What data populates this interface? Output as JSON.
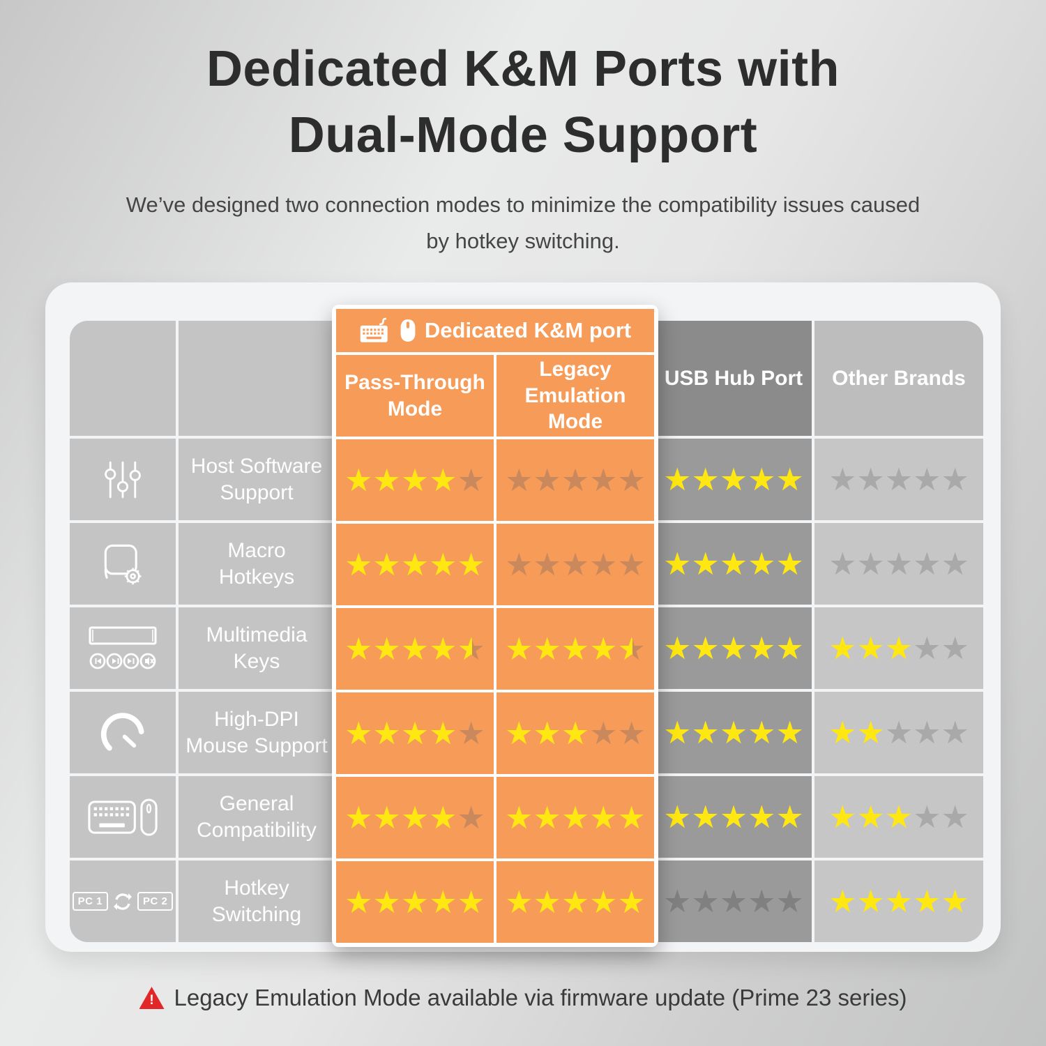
{
  "title": {
    "line1": "Dedicated K&M Ports with",
    "line2": "Dual-Mode Support"
  },
  "subtitle": "We’ve designed two connection modes to minimize the compatibility issues caused by hotkey switching.",
  "table": {
    "group_header": "Dedicated K&M port",
    "group_icons": [
      "keyboard-icon",
      "mouse-icon"
    ],
    "columns": {
      "pass": "Pass-Through\nMode",
      "legacy": "Legacy\nEmulation\nMode",
      "usb": "USB Hub Port",
      "other": "Other Brands"
    },
    "max_stars": 5,
    "rows": [
      {
        "icon": "sliders-icon",
        "label": "Host Software\nSupport"
      },
      {
        "icon": "macro-hotkeys-icon",
        "label": "Macro\nHotkeys"
      },
      {
        "icon": "multimedia-keys-icon",
        "label": "Multimedia\nKeys"
      },
      {
        "icon": "gauge-icon",
        "label": "High-DPI\nMouse Support"
      },
      {
        "icon": "keyboard-mouse-icon",
        "label": "General\nCompatibility"
      },
      {
        "icon": "pc-switch-icon",
        "label": "Hotkey\nSwitching"
      }
    ],
    "pc_labels": {
      "pc1": "PC 1",
      "pc2": "PC 2"
    }
  },
  "chart_data": {
    "type": "table",
    "title": "Dedicated K&M Ports with Dual-Mode Support",
    "categories": [
      "Host Software Support",
      "Macro Hotkeys",
      "Multimedia Keys",
      "High-DPI Mouse Support",
      "General Compatibility",
      "Hotkey Switching"
    ],
    "series": [
      {
        "name": "Pass-Through Mode",
        "values": [
          4,
          5,
          4.5,
          4,
          4,
          5
        ]
      },
      {
        "name": "Legacy Emulation Mode",
        "values": [
          0,
          0,
          4.5,
          3,
          5,
          5
        ]
      },
      {
        "name": "USB Hub Port",
        "values": [
          5,
          5,
          5,
          5,
          5,
          0
        ]
      },
      {
        "name": "Other Brands",
        "values": [
          0,
          0,
          3,
          2,
          3,
          5
        ]
      }
    ],
    "scale": {
      "min": 0,
      "max": 5,
      "unit": "stars"
    }
  },
  "footnote": {
    "icon": "warning-icon",
    "text": "Legacy Emulation Mode available via firmware update (Prime 23 series)"
  },
  "colors": {
    "accent_orange": "#f79b59",
    "star_yellow": "#ffe712",
    "star_empty_on_orange": "#c9895c",
    "star_empty_on_dark": "#808080",
    "star_empty_on_light": "#a9a9a9",
    "warning_red": "#e12727"
  }
}
